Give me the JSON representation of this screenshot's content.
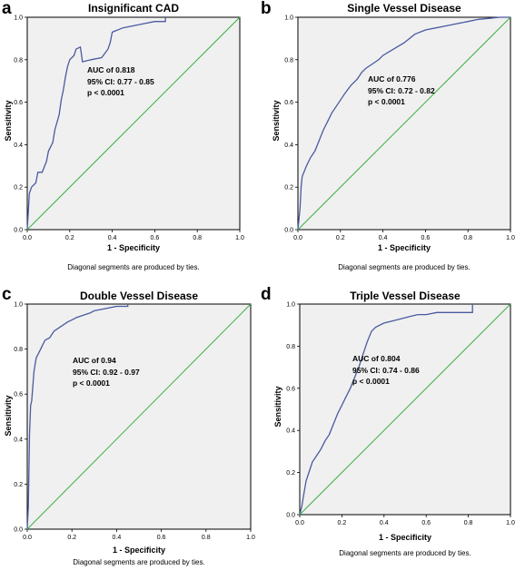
{
  "chart_data": [
    {
      "type": "line",
      "letter": "a",
      "title": "Insignificant CAD",
      "xlabel": "1 - Specificity",
      "ylabel": "Sensitivity",
      "footnote": "Diagonal segments are produced by ties.",
      "annotation": [
        "AUC of  0.818",
        "95% CI: 0.77 - 0.85",
        "p < 0.0001"
      ],
      "xlim": [
        0,
        1
      ],
      "ylim": [
        0,
        1
      ],
      "ticks": [
        "0.0",
        "0.2",
        "0.4",
        "0.6",
        "0.8",
        "1.0"
      ],
      "background": "#f0f0f0",
      "series": [
        {
          "color": "#4a5aa0",
          "x": [
            0,
            0.01,
            0.02,
            0.04,
            0.05,
            0.07,
            0.09,
            0.1,
            0.12,
            0.13,
            0.15,
            0.16,
            0.17,
            0.18,
            0.19,
            0.2,
            0.22,
            0.23,
            0.25,
            0.26,
            0.3,
            0.35,
            0.38,
            0.39,
            0.4,
            0.45,
            0.5,
            0.55,
            0.6,
            0.65,
            0.65
          ],
          "y": [
            0,
            0.17,
            0.2,
            0.22,
            0.27,
            0.27,
            0.32,
            0.37,
            0.41,
            0.47,
            0.54,
            0.61,
            0.66,
            0.72,
            0.77,
            0.8,
            0.82,
            0.85,
            0.86,
            0.79,
            0.8,
            0.81,
            0.85,
            0.88,
            0.93,
            0.95,
            0.96,
            0.97,
            0.98,
            0.98,
            1.0
          ]
        },
        {
          "color": "#3cb043",
          "x": [
            0,
            1
          ],
          "y": [
            0,
            1
          ]
        }
      ]
    },
    {
      "type": "line",
      "letter": "b",
      "title": "Single Vessel Disease",
      "xlabel": "1 - Specificity",
      "ylabel": "Sensitivity",
      "footnote": "Diagonal segments are produced by ties.",
      "annotation": [
        "AUC of  0.776",
        "95% CI: 0.72 - 0.82",
        "p < 0.0001"
      ],
      "xlim": [
        0,
        1
      ],
      "ylim": [
        0,
        1
      ],
      "ticks": [
        "0.0",
        "0.2",
        "0.4",
        "0.6",
        "0.8",
        "1.0"
      ],
      "background": "#f0f0f0",
      "series": [
        {
          "color": "#4a5aa0",
          "x": [
            0,
            0.01,
            0.015,
            0.02,
            0.04,
            0.06,
            0.08,
            0.1,
            0.12,
            0.14,
            0.16,
            0.18,
            0.2,
            0.22,
            0.25,
            0.28,
            0.3,
            0.32,
            0.35,
            0.38,
            0.4,
            0.45,
            0.5,
            0.55,
            0.6,
            0.65,
            0.7,
            0.75,
            0.8,
            0.85,
            0.9,
            0.95,
            1.0
          ],
          "y": [
            0,
            0.1,
            0.2,
            0.25,
            0.3,
            0.34,
            0.37,
            0.42,
            0.47,
            0.51,
            0.55,
            0.58,
            0.61,
            0.64,
            0.68,
            0.71,
            0.74,
            0.76,
            0.78,
            0.8,
            0.82,
            0.85,
            0.88,
            0.92,
            0.94,
            0.95,
            0.96,
            0.97,
            0.98,
            0.99,
            0.995,
            1.0,
            1.0
          ]
        },
        {
          "color": "#3cb043",
          "x": [
            0,
            1
          ],
          "y": [
            0,
            1
          ]
        }
      ]
    },
    {
      "type": "line",
      "letter": "c",
      "title": "Double Vessel Disease",
      "xlabel": "1 - Specificity",
      "ylabel": "Sensitivity",
      "footnote": "Diagonal segments are produced by ties.",
      "annotation": [
        "AUC of  0.94",
        "95% CI: 0.92 - 0.97",
        "p < 0.0001"
      ],
      "xlim": [
        0,
        1
      ],
      "ylim": [
        0,
        1
      ],
      "ticks": [
        "0.0",
        "0.2",
        "0.4",
        "0.6",
        "0.8",
        "1.0"
      ],
      "background": "#f0f0f0",
      "series": [
        {
          "color": "#4a5aa0",
          "x": [
            0,
            0.005,
            0.01,
            0.015,
            0.02,
            0.03,
            0.04,
            0.05,
            0.06,
            0.07,
            0.08,
            0.1,
            0.12,
            0.15,
            0.18,
            0.2,
            0.22,
            0.25,
            0.28,
            0.3,
            0.35,
            0.4,
            0.45,
            0.45
          ],
          "y": [
            0,
            0.1,
            0.42,
            0.55,
            0.57,
            0.7,
            0.76,
            0.78,
            0.8,
            0.82,
            0.84,
            0.85,
            0.88,
            0.9,
            0.92,
            0.93,
            0.94,
            0.95,
            0.96,
            0.97,
            0.98,
            0.99,
            0.99,
            1.0
          ]
        },
        {
          "color": "#3cb043",
          "x": [
            0,
            1
          ],
          "y": [
            0,
            1
          ]
        }
      ]
    },
    {
      "type": "line",
      "letter": "d",
      "title": "Triple Vessel Disease",
      "xlabel": "1 - Specificity",
      "ylabel": "Sensitivity",
      "footnote": "Diagonal segments are produced by ties.",
      "annotation": [
        "AUC of  0.804",
        "95% CI: 0.74 - 0.86",
        "p < 0.0001"
      ],
      "xlim": [
        0,
        1
      ],
      "ylim": [
        0,
        1
      ],
      "ticks": [
        "0.0",
        "0.2",
        "0.4",
        "0.6",
        "0.8",
        "1.0"
      ],
      "background": "#f0f0f0",
      "series": [
        {
          "color": "#4a5aa0",
          "x": [
            0,
            0.01,
            0.02,
            0.03,
            0.05,
            0.06,
            0.08,
            0.1,
            0.12,
            0.14,
            0.16,
            0.18,
            0.2,
            0.22,
            0.24,
            0.26,
            0.28,
            0.3,
            0.32,
            0.34,
            0.36,
            0.4,
            0.44,
            0.48,
            0.52,
            0.56,
            0.6,
            0.65,
            0.7,
            0.75,
            0.8,
            0.82,
            0.82
          ],
          "y": [
            0,
            0.04,
            0.1,
            0.16,
            0.22,
            0.25,
            0.28,
            0.31,
            0.35,
            0.38,
            0.43,
            0.48,
            0.52,
            0.56,
            0.6,
            0.65,
            0.7,
            0.76,
            0.82,
            0.87,
            0.89,
            0.91,
            0.92,
            0.93,
            0.94,
            0.95,
            0.95,
            0.96,
            0.96,
            0.96,
            0.96,
            0.96,
            1.0
          ]
        },
        {
          "color": "#3cb043",
          "x": [
            0,
            1
          ],
          "y": [
            0,
            1
          ]
        }
      ]
    }
  ]
}
